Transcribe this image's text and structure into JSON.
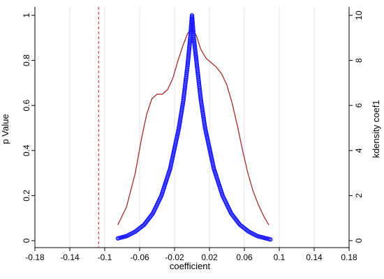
{
  "chart_data": {
    "type": "scatter",
    "xlabel": "coefficient",
    "ylabel_left": "p Value",
    "ylabel_right": "kdensity coef1",
    "xlim": [
      -0.18,
      0.18
    ],
    "ylim_left": [
      0,
      1
    ],
    "ylim_right": [
      0,
      10
    ],
    "x_ticks": [
      -0.18,
      -0.14,
      -0.1,
      -0.06,
      -0.02,
      0.02,
      0.06,
      0.1,
      0.14,
      0.18
    ],
    "x_tick_labels": [
      "-0.18",
      "-0.14",
      "-0.1",
      "-0.06",
      "-0.02",
      "0.02",
      "0.06",
      "0.1",
      "0.14",
      "0.18"
    ],
    "y_left_ticks": [
      0,
      0.2,
      0.4,
      0.6,
      0.8,
      1
    ],
    "y_left_tick_labels": [
      "0",
      "0.2",
      "0.4",
      "0.6",
      "0.8",
      "1"
    ],
    "y_right_ticks": [
      0,
      2,
      4,
      6,
      8,
      10
    ],
    "y_right_tick_labels": [
      "0",
      "2",
      "4",
      "6",
      "8",
      "10"
    ],
    "grid": "vertical",
    "reference_line": {
      "x": -0.107,
      "style": "dashed",
      "color": "#e0403a"
    },
    "series": [
      {
        "type": "scatter",
        "axis": "left",
        "color": "#1a1aff",
        "marker": "hollow-circle",
        "points": [
          [
            -0.085,
            0.01
          ],
          [
            -0.075,
            0.02
          ],
          [
            -0.065,
            0.04
          ],
          [
            -0.055,
            0.07
          ],
          [
            -0.045,
            0.12
          ],
          [
            -0.035,
            0.2
          ],
          [
            -0.025,
            0.32
          ],
          [
            -0.015,
            0.5
          ],
          [
            -0.01,
            0.62
          ],
          [
            -0.005,
            0.78
          ],
          [
            -0.002,
            0.9
          ],
          [
            0,
            1
          ],
          [
            0.002,
            0.9
          ],
          [
            0.005,
            0.8
          ],
          [
            0.01,
            0.63
          ],
          [
            0.015,
            0.5
          ],
          [
            0.025,
            0.32
          ],
          [
            0.035,
            0.2
          ],
          [
            0.045,
            0.12
          ],
          [
            0.055,
            0.07
          ],
          [
            0.065,
            0.04
          ],
          [
            0.075,
            0.02
          ],
          [
            0.09,
            0.005
          ]
        ]
      },
      {
        "type": "line",
        "axis": "right",
        "color": "#a52a2a",
        "points": [
          [
            -0.085,
            0.7
          ],
          [
            -0.075,
            1.5
          ],
          [
            -0.065,
            3.0
          ],
          [
            -0.058,
            4.5
          ],
          [
            -0.052,
            5.6
          ],
          [
            -0.046,
            6.3
          ],
          [
            -0.04,
            6.5
          ],
          [
            -0.034,
            6.5
          ],
          [
            -0.028,
            6.7
          ],
          [
            -0.022,
            7.2
          ],
          [
            -0.016,
            8.0
          ],
          [
            -0.01,
            8.7
          ],
          [
            -0.005,
            9.2
          ],
          [
            0,
            9.4
          ],
          [
            0.005,
            9.1
          ],
          [
            0.01,
            8.5
          ],
          [
            0.016,
            8.1
          ],
          [
            0.022,
            7.9
          ],
          [
            0.028,
            7.7
          ],
          [
            0.034,
            7.4
          ],
          [
            0.04,
            6.9
          ],
          [
            0.046,
            6.1
          ],
          [
            0.052,
            5.1
          ],
          [
            0.058,
            4.0
          ],
          [
            0.064,
            3.0
          ],
          [
            0.07,
            2.2
          ],
          [
            0.076,
            1.6
          ],
          [
            0.082,
            1.1
          ],
          [
            0.088,
            0.7
          ]
        ]
      }
    ]
  }
}
